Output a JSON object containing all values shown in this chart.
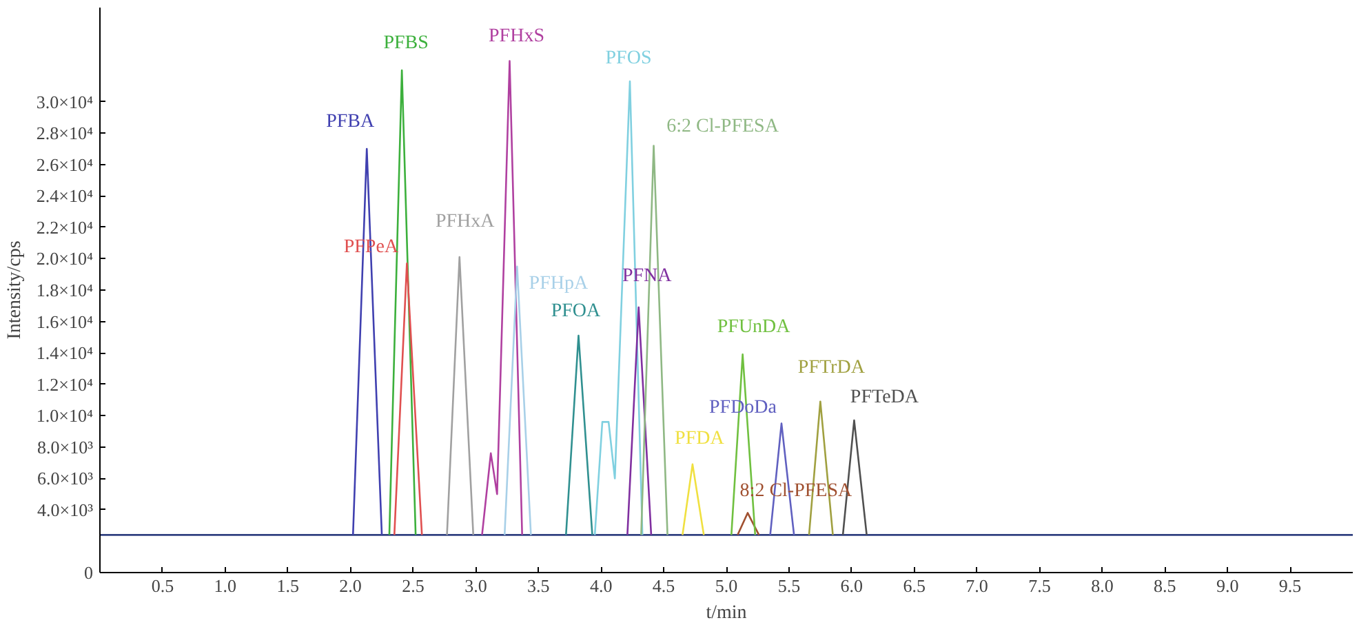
{
  "chart_data": {
    "type": "line",
    "xlabel": "t/min",
    "ylabel": "Intensity/cps",
    "xlim": [
      0,
      10
    ],
    "xticks": [
      0.5,
      {
        "value": 1,
        "label": "1.0"
      },
      1.5,
      {
        "value": 2,
        "label": "2.0"
      },
      2.5,
      {
        "value": 3,
        "label": "3.0"
      },
      3.5,
      {
        "value": 4,
        "label": "4.0"
      },
      4.5,
      {
        "value": 5,
        "label": "5.0"
      },
      5.5,
      {
        "value": 6,
        "label": "6.0"
      },
      6.5,
      {
        "value": 7,
        "label": "7.0"
      },
      7.5,
      {
        "value": 8,
        "label": "8.0"
      },
      8.5,
      {
        "value": 9,
        "label": "9.0"
      },
      9.5
    ],
    "ylim": [
      0,
      36000
    ],
    "yticks": [
      0,
      {
        "value": 4000,
        "label": "4.0×10³"
      },
      {
        "value": 6000,
        "label": "6.0×10³"
      },
      {
        "value": 8000,
        "label": "8.0×10³"
      },
      {
        "value": 10000,
        "label": "1.0×10⁴"
      },
      {
        "value": 12000,
        "label": "1.2×10⁴"
      },
      {
        "value": 14000,
        "label": "1.4×10⁴"
      },
      {
        "value": 16000,
        "label": "1.6×10⁴"
      },
      {
        "value": 18000,
        "label": "1.8×10⁴"
      },
      {
        "value": 20000,
        "label": "2.0×10⁴"
      },
      {
        "value": 22000,
        "label": "2.2×10⁴"
      },
      {
        "value": 24000,
        "label": "2.4×10⁴"
      },
      {
        "value": 26000,
        "label": "2.6×10⁴"
      },
      {
        "value": 28000,
        "label": "2.8×10⁴"
      },
      {
        "value": 30000,
        "label": "3.0×10⁴"
      }
    ],
    "grid": false,
    "legend": false,
    "line_style": "solid",
    "marker": "none",
    "series": [
      {
        "color": "#304080",
        "x": [
          0.0,
          1.0,
          2.0,
          3.0,
          4.0,
          5.0,
          6.0,
          7.0,
          8.0,
          9.0,
          10.0
        ],
        "values": [
          2400,
          2400,
          2400,
          2400,
          2400,
          2400,
          2400,
          2400,
          2400,
          2400,
          2400
        ]
      },
      {
        "name": "PFBA",
        "color": "#4040b0",
        "x": [
          2.02,
          2.13,
          2.25
        ],
        "values": [
          2400,
          27000,
          2400
        ]
      },
      {
        "name": "PFBS",
        "color": "#3cb03c",
        "x": [
          2.31,
          2.41,
          2.52
        ],
        "values": [
          2400,
          32000,
          2400
        ]
      },
      {
        "name": "PFPeA",
        "color": "#e05050",
        "x": [
          2.35,
          2.45,
          2.57
        ],
        "values": [
          2400,
          19700,
          2400
        ]
      },
      {
        "name": "PFHxA",
        "color": "#a0a0a0",
        "x": [
          2.77,
          2.87,
          2.98
        ],
        "values": [
          2400,
          20100,
          2400
        ]
      },
      {
        "name": "PFHxS",
        "color": "#b040a0",
        "x": [
          3.05,
          3.12,
          3.17,
          3.27,
          3.37
        ],
        "values": [
          2400,
          7600,
          5000,
          32600,
          2400
        ]
      },
      {
        "name": "PFHpA",
        "color": "#a8d0e8",
        "x": [
          3.23,
          3.33,
          3.44
        ],
        "values": [
          2400,
          19500,
          2400
        ]
      },
      {
        "name": "PFOA",
        "color": "#309090",
        "x": [
          3.72,
          3.82,
          3.93
        ],
        "values": [
          2400,
          15100,
          2400
        ]
      },
      {
        "name": "PFOS",
        "color": "#80d0e0",
        "x": [
          3.95,
          4.01,
          4.06,
          4.11,
          4.23,
          4.33
        ],
        "values": [
          2400,
          9600,
          9600,
          6000,
          31300,
          2400
        ]
      },
      {
        "name": "PFNA",
        "color": "#8030a0",
        "x": [
          4.21,
          4.3,
          4.4
        ],
        "values": [
          2400,
          16900,
          2400
        ]
      },
      {
        "name": "6:2 Cl-PFESA",
        "color": "#8fb884",
        "x": [
          4.32,
          4.42,
          4.53
        ],
        "values": [
          2400,
          27200,
          2400
        ]
      },
      {
        "name": "PFDA",
        "color": "#f0e040",
        "x": [
          4.65,
          4.73,
          4.82
        ],
        "values": [
          2400,
          6900,
          2400
        ]
      },
      {
        "name": "8:2 Cl-PFESA",
        "color": "#a05030",
        "x": [
          5.09,
          5.17,
          5.26
        ],
        "values": [
          2400,
          3800,
          2400
        ]
      },
      {
        "name": "PFUnDA",
        "color": "#70c040",
        "x": [
          5.04,
          5.13,
          5.23
        ],
        "values": [
          2400,
          13900,
          2400
        ]
      },
      {
        "name": "PFDoDa",
        "color": "#6060c0",
        "x": [
          5.35,
          5.44,
          5.54
        ],
        "values": [
          2400,
          9500,
          2400
        ]
      },
      {
        "name": "PFTrDA",
        "color": "#a0a040",
        "x": [
          5.66,
          5.75,
          5.85
        ],
        "values": [
          2400,
          10900,
          2400
        ]
      },
      {
        "name": "PFTeDA",
        "color": "#505050",
        "x": [
          5.93,
          6.02,
          6.12
        ],
        "values": [
          2400,
          9700,
          2400
        ]
      }
    ]
  }
}
